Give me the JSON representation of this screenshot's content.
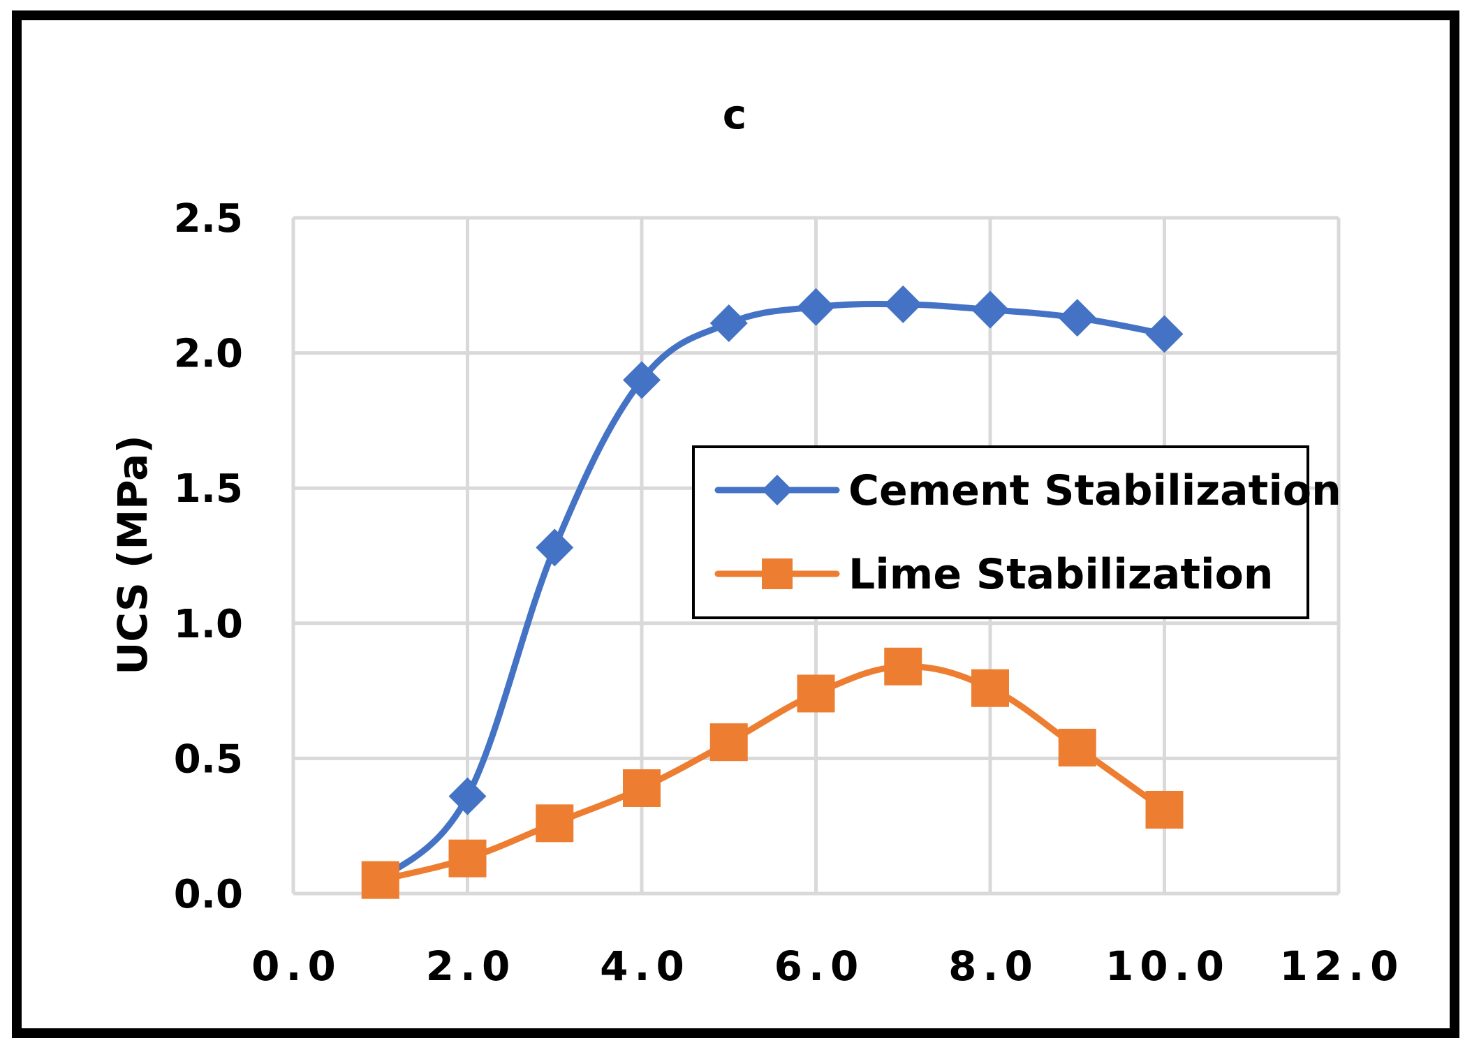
{
  "chart_data": {
    "type": "line",
    "title": "c",
    "xlabel": "",
    "ylabel": "UCS (MPa)",
    "xlim": [
      0,
      12
    ],
    "ylim": [
      0,
      2.5
    ],
    "x_ticks": [
      "0.0",
      "2.0",
      "4.0",
      "6.0",
      "8.0",
      "10.0",
      "12.0"
    ],
    "y_ticks": [
      "0.0",
      "0.5",
      "1.0",
      "1.5",
      "2.0",
      "2.5"
    ],
    "grid": true,
    "legend_position": "center-right",
    "series": [
      {
        "name": "Cement Stabilization",
        "color": "#4472c4",
        "marker": "diamond",
        "smooth": true,
        "x": [
          1,
          2,
          3,
          4,
          5,
          6,
          7,
          8,
          9,
          10
        ],
        "y": [
          0.05,
          0.36,
          1.28,
          1.9,
          2.11,
          2.17,
          2.18,
          2.16,
          2.13,
          2.07
        ]
      },
      {
        "name": "Lime Stabilization",
        "color": "#ed7d31",
        "marker": "square",
        "smooth": true,
        "x": [
          1,
          2,
          3,
          4,
          5,
          6,
          7,
          8,
          9,
          10
        ],
        "y": [
          0.05,
          0.13,
          0.26,
          0.39,
          0.56,
          0.74,
          0.84,
          0.76,
          0.54,
          0.31
        ]
      }
    ]
  }
}
